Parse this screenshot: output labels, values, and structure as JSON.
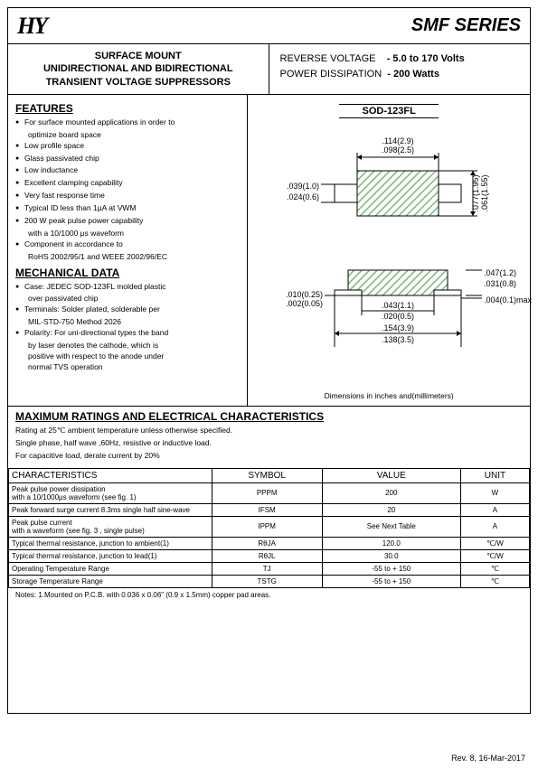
{
  "logo": "HY",
  "series_title": "SMF SERIES",
  "header": {
    "left_line1": "SURFACE MOUNT",
    "left_line2": "UNIDIRECTIONAL AND BIDIRECTIONAL",
    "left_line3": "TRANSIENT VOLTAGE  SUPPRESSORS",
    "rv_label": "REVERSE VOLTAGE",
    "rv_value": "-  5.0 to 170 Volts",
    "pd_label": "POWER DISSIPATION",
    "pd_value": "-  200 Watts"
  },
  "features_heading": "FEATURES",
  "features": [
    "For surface mounted applications in order to",
    "Low profile space",
    "Glass passivated chip",
    "Low inductance",
    "Excellent clamping capability",
    "Very fast response time",
    "Typical ID less than 1μA at VWM",
    "200 W peak pulse power capability",
    "Component in accordance to"
  ],
  "feature_sub1": "optimize board space",
  "feature_sub8": "with a 10/1000 μs waveform",
  "feature_sub9": "RoHS 2002/95/1 and WEEE 2002/96/EC",
  "mech_heading": "MECHANICAL  DATA",
  "mech": [
    "Case: JEDEC SOD-123FL molded plastic",
    "Terminals: Solder plated, solderable per",
    "Polarity: For uni-directional types the band"
  ],
  "mech_sub1": "over passivated chip",
  "mech_sub2": "MIL-STD-750 Method 2026",
  "mech_sub3a": "by laser denotes the cathode, which is",
  "mech_sub3b": "positive with respect to the anode under",
  "mech_sub3c": "normal TVS operation",
  "package_label": "SOD-123FL",
  "dims_top": {
    "w1": ".114(2.9)",
    "w2": ".098(2.5)",
    "h1": ".077(1.95)",
    "h2": ".061(1.55)",
    "l1": ".039(1.0)",
    "l2": ".024(0.6)"
  },
  "dims_bot": {
    "a1": ".010(0.25)",
    "a2": ".002(0.05)",
    "b1": ".043(1.1)",
    "b2": ".020(0.5)",
    "c1": ".154(3.9)",
    "c2": ".138(3.5)",
    "d1": ".047(1.2)",
    "d2": ".031(0.8)",
    "e": ".004(0.1)max"
  },
  "dim_note": "Dimensions in inches and(millimeters)",
  "ratings_heading": "MAXIMUM RATINGS AND ELECTRICAL CHARACTERISTICS",
  "ratings_line1": "Rating at 25℃ ambient temperature unless otherwise specified.",
  "ratings_line2": "Single phase, half wave ,60Hz, resistive or inductive load.",
  "ratings_line3": "For capacitive load, derate current by 20%",
  "table": {
    "headers": [
      "CHARACTERISTICS",
      "SYMBOL",
      "VALUE",
      "UNIT"
    ],
    "col_widths": [
      "39%",
      "11%",
      "40%",
      "10%"
    ],
    "rows": [
      {
        "char": "Peak pulse power dissipation\nwith a 10/1000μs waveform (see fig. 1)",
        "symbol": "PPPM",
        "value": "200",
        "unit": "W"
      },
      {
        "char": "Peak forward surge current 8.3ms single half sine-wave",
        "symbol": "IFSM",
        "value": "20",
        "unit": "A"
      },
      {
        "char": "Peak pulse current\nwith a waveform (see fig. 3 , single pulse)",
        "symbol": "IPPM",
        "value": "See Next Table",
        "unit": "A"
      },
      {
        "char": "Typical thermal resistance, junction to ambient(1)",
        "symbol": "RθJA",
        "value": "120.0",
        "unit": "℃/W"
      },
      {
        "char": "Typical thermal resistance, junction to lead(1)",
        "symbol": "RθJL",
        "value": "30.0",
        "unit": "℃/W"
      },
      {
        "char": "Operating Temperature Range",
        "symbol": "TJ",
        "value": "-55 to + 150",
        "unit": "℃"
      },
      {
        "char": "Storage Temperature Range",
        "symbol": "TSTG",
        "value": "-55 to + 150",
        "unit": "℃"
      }
    ]
  },
  "notes": "Notes: 1.Mounted on P.C.B. with 0.036 x 0.06\" (0.9 x 1.5mm) copper pad areas.",
  "footer": "Rev. 8, 16-Mar-2017",
  "colors": {
    "hatch": "#7aba7a",
    "line": "#000000"
  }
}
